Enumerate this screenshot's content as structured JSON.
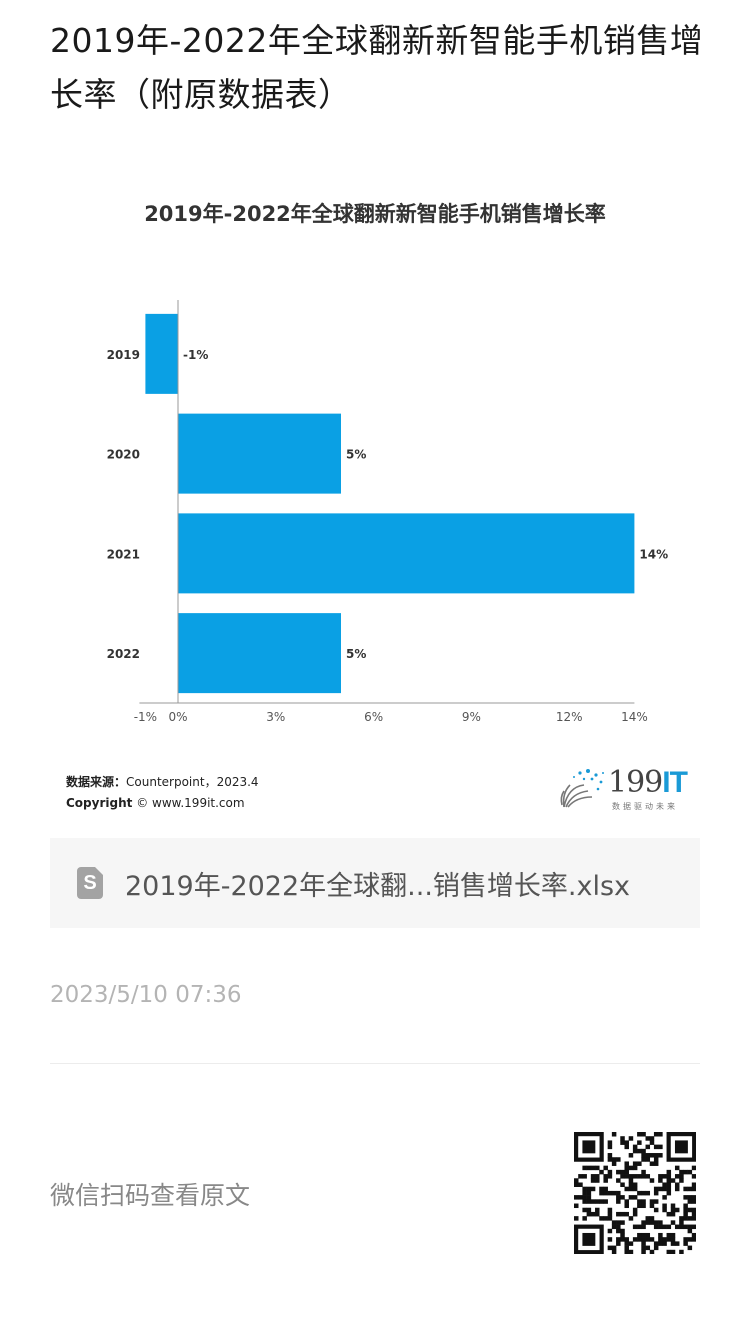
{
  "article": {
    "title": "2019年-2022年全球翻新新智能手机销售增长率（附原数据表）",
    "attachment_name": "2019年-2022年全球翻...销售增长率.xlsx",
    "attachment_icon": "spreadsheet-file-icon",
    "date": "2023/5/10 07:36",
    "qr_label": "微信扫码查看原文"
  },
  "source": {
    "label": "数据来源：",
    "text": "Counterpoint，2023.4",
    "copyright_label": "Copyright",
    "copyright_text": "© www.199it.com"
  },
  "brand": {
    "logo_main": "199",
    "logo_accent": "IT",
    "tagline": "数据驱动未来"
  },
  "chart_data": {
    "type": "bar",
    "orientation": "horizontal",
    "title": "2019年-2022年全球翻新新智能手机销售增长率",
    "categories": [
      "2019",
      "2020",
      "2021",
      "2022"
    ],
    "values": [
      -1,
      5,
      14,
      5
    ],
    "value_labels": [
      "-1%",
      "5%",
      "14%",
      "5%"
    ],
    "xlim": [
      -1,
      14
    ],
    "xticks": [
      "-1%",
      "0%",
      "3%",
      "6%",
      "9%",
      "12%",
      "14%"
    ],
    "xtick_values": [
      -1,
      0,
      3,
      6,
      9,
      12,
      14
    ],
    "bar_color": "#0aa0e4",
    "grid": false,
    "legend": "none"
  }
}
